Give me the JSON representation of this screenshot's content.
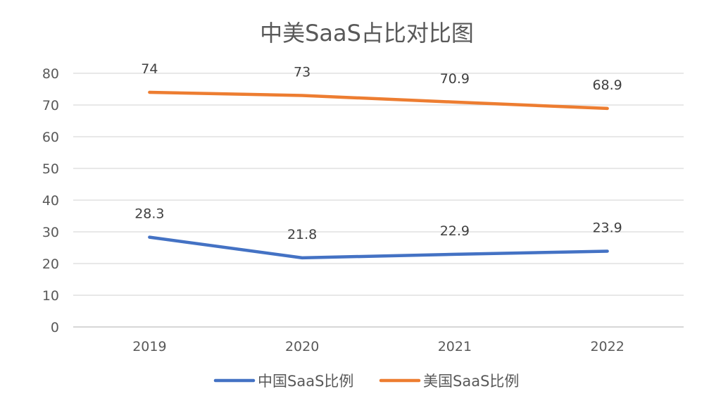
{
  "chart_data": {
    "type": "line",
    "title": "中美SaaS占比对比图",
    "xlabel": "",
    "ylabel": "",
    "categories": [
      "2019",
      "2020",
      "2021",
      "2022"
    ],
    "ylim": [
      0,
      80
    ],
    "yticks": [
      "0",
      "10",
      "20",
      "30",
      "40",
      "50",
      "60",
      "70",
      "80"
    ],
    "grid": true,
    "legend_position": "bottom",
    "series": [
      {
        "name": "中国SaaS比例",
        "values": [
          28.3,
          21.8,
          22.9,
          23.9
        ],
        "labels": [
          "28.3",
          "21.8",
          "22.9",
          "23.9"
        ],
        "color": "#4472C4"
      },
      {
        "name": "美国SaaS比例",
        "values": [
          74,
          73,
          70.9,
          68.9
        ],
        "labels": [
          "74",
          "73",
          "70.9",
          "68.9"
        ],
        "color": "#ED7D31"
      }
    ]
  }
}
